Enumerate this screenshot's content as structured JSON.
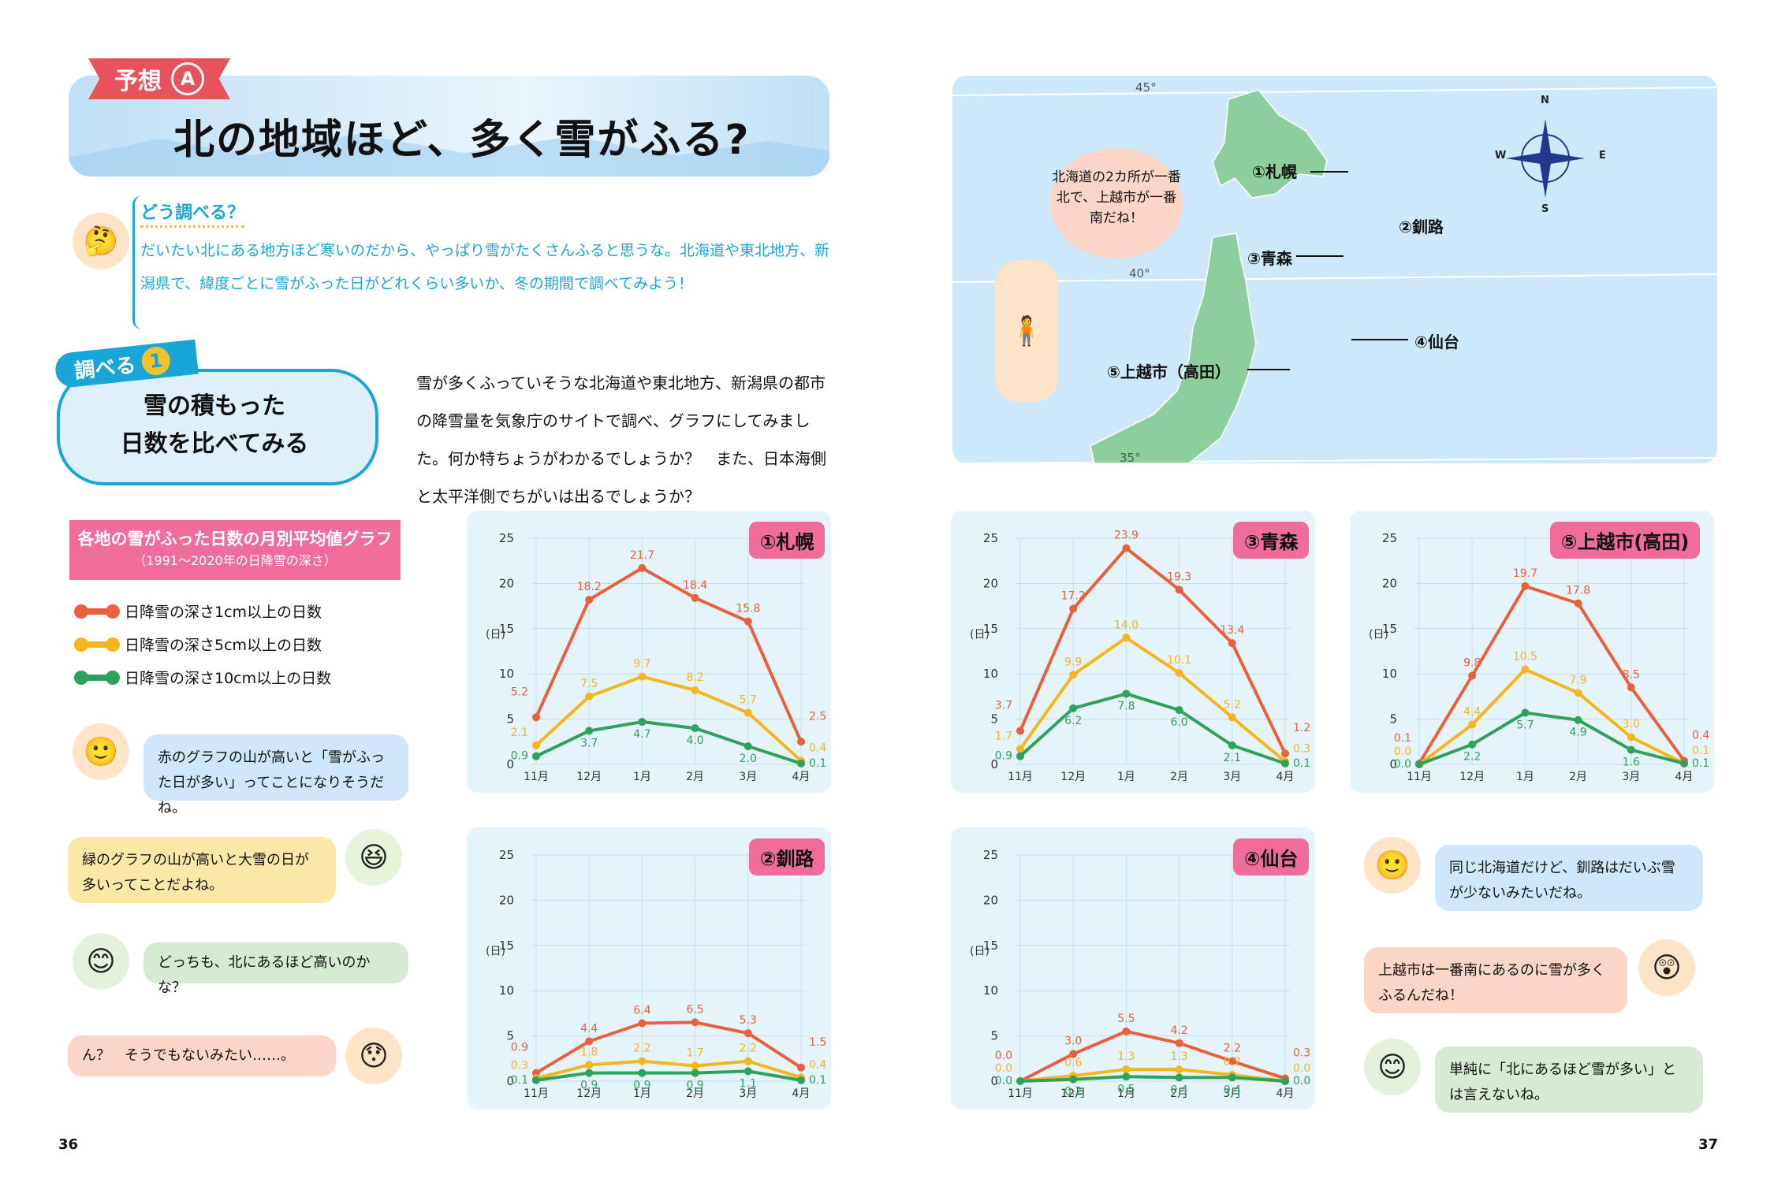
{
  "left_page": {
    "hypothesis_tag": "予想",
    "hypothesis_letter": "A",
    "title": "北の地域ほど、多く雪がふる?",
    "how_title": "どう調べる？",
    "how_text": "だいたい北にある地方ほど寒いのだから、やっぱり雪がたくさんふると思うな。北海道や東北地方、新潟県で、緯度ごとに雪がふった日がどれくらい多いか、冬の期間で調べてみよう！",
    "section_tag": "調べる",
    "section_num": "1",
    "section_title_line1": "雪の積もった",
    "section_title_line2": "日数を比べてみる",
    "description": "雪が多くふっていそうな北海道や東北地方、新潟県の都市の降雪量を気象庁のサイトで調べ、グラフにしてみました。何か特ちょうがわかるでしょうか？　また、日本海側と太平洋側でちがいは出るでしょうか？",
    "legend_title": "各地の雪がふった日数の月別平均値グラフ",
    "legend_subtitle": "（1991～2020年の日降雪の深さ）",
    "legend": [
      {
        "label": "日降雪の深さ1cm以上の日数",
        "color": "#e8613c"
      },
      {
        "label": "日降雪の深さ5cm以上の日数",
        "color": "#f5b51c"
      },
      {
        "label": "日降雪の深さ10cm以上の日数",
        "color": "#2ea25a"
      }
    ],
    "bubbles": [
      "赤のグラフの山が高いと「雪がふった日が多い」ってことになりそうだね。",
      "緑のグラフの山が高いと大雪の日が多いってことだよね。",
      "どっちも、北にあるほど高いのかな？",
      "ん？　そうでもないみたい……。"
    ],
    "page_number": "36"
  },
  "right_page": {
    "map_bubble": "北海道の2カ所が一番北で、上越市が一番南だね！",
    "latitudes": [
      "45°",
      "40°",
      "35°"
    ],
    "compass": [
      "N",
      "S",
      "E",
      "W"
    ],
    "cities": [
      "①札幌",
      "②釧路",
      "③青森",
      "④仙台",
      "⑤上越市（高田）"
    ],
    "bubbles": [
      "同じ北海道だけど、釧路はだいぶ雪が少ないみたいだね。",
      "上越市は一番南にあるのに雪が多くふるんだね！",
      "単純に「北にあるほど雪が多い」とは言えないね。"
    ],
    "page_number": "37"
  },
  "chart_data": [
    {
      "type": "line",
      "title": "①札幌",
      "ylabel": "(日)",
      "categories": [
        "11月",
        "12月",
        "1月",
        "2月",
        "3月",
        "4月"
      ],
      "ylim": [
        0,
        25
      ],
      "yticks": [
        "0",
        "5",
        "10",
        "15",
        "20",
        "25"
      ],
      "series": [
        {
          "name": "1cm以上",
          "values": [
            5.2,
            18.2,
            21.7,
            18.4,
            15.8,
            2.5
          ]
        },
        {
          "name": "5cm以上",
          "values": [
            2.1,
            7.5,
            9.7,
            8.2,
            5.7,
            0.4
          ]
        },
        {
          "name": "10cm以上",
          "values": [
            0.9,
            3.7,
            4.7,
            4.0,
            2.0,
            0.1
          ]
        }
      ]
    },
    {
      "type": "line",
      "title": "②釧路",
      "ylabel": "(日)",
      "categories": [
        "11月",
        "12月",
        "1月",
        "2月",
        "3月",
        "4月"
      ],
      "ylim": [
        0,
        25
      ],
      "yticks": [
        "0",
        "5",
        "10",
        "15",
        "20",
        "25"
      ],
      "series": [
        {
          "name": "1cm以上",
          "values": [
            0.9,
            4.4,
            6.4,
            6.5,
            5.3,
            1.5
          ]
        },
        {
          "name": "5cm以上",
          "values": [
            0.3,
            1.8,
            2.2,
            1.7,
            2.2,
            0.4
          ]
        },
        {
          "name": "10cm以上",
          "values": [
            0.1,
            0.9,
            0.9,
            0.9,
            1.1,
            0.1
          ]
        }
      ]
    },
    {
      "type": "line",
      "title": "③青森",
      "ylabel": "(日)",
      "categories": [
        "11月",
        "12月",
        "1月",
        "2月",
        "3月",
        "4月"
      ],
      "ylim": [
        0,
        25
      ],
      "yticks": [
        "0",
        "5",
        "10",
        "15",
        "20",
        "25"
      ],
      "series": [
        {
          "name": "1cm以上",
          "values": [
            3.7,
            17.2,
            23.9,
            19.3,
            13.4,
            1.2
          ]
        },
        {
          "name": "5cm以上",
          "values": [
            1.7,
            9.9,
            14.0,
            10.1,
            5.2,
            0.3
          ]
        },
        {
          "name": "10cm以上",
          "values": [
            0.9,
            6.2,
            7.8,
            6.0,
            2.1,
            0.1
          ]
        }
      ]
    },
    {
      "type": "line",
      "title": "④仙台",
      "ylabel": "(日)",
      "categories": [
        "11月",
        "12月",
        "1月",
        "2月",
        "3月",
        "4月"
      ],
      "ylim": [
        0,
        25
      ],
      "yticks": [
        "0",
        "5",
        "10",
        "15",
        "20",
        "25"
      ],
      "series": [
        {
          "name": "1cm以上",
          "values": [
            0.0,
            3.0,
            5.5,
            4.2,
            2.2,
            0.3
          ]
        },
        {
          "name": "5cm以上",
          "values": [
            0.0,
            0.6,
            1.3,
            1.3,
            0.7,
            0.0
          ]
        },
        {
          "name": "10cm以上",
          "values": [
            0.0,
            0.2,
            0.5,
            0.4,
            0.4,
            0.0
          ]
        }
      ]
    },
    {
      "type": "line",
      "title": "⑤上越市(高田)",
      "ylabel": "(日)",
      "categories": [
        "11月",
        "12月",
        "1月",
        "2月",
        "3月",
        "4月"
      ],
      "ylim": [
        0,
        25
      ],
      "yticks": [
        "0",
        "5",
        "10",
        "15",
        "20",
        "25"
      ],
      "series": [
        {
          "name": "1cm以上",
          "values": [
            0.1,
            9.8,
            19.7,
            17.8,
            8.5,
            0.4
          ]
        },
        {
          "name": "5cm以上",
          "values": [
            0.0,
            4.4,
            10.5,
            7.9,
            3.0,
            0.1
          ]
        },
        {
          "name": "10cm以上",
          "values": [
            0.0,
            2.2,
            5.7,
            4.9,
            1.6,
            0.1
          ]
        }
      ]
    }
  ]
}
